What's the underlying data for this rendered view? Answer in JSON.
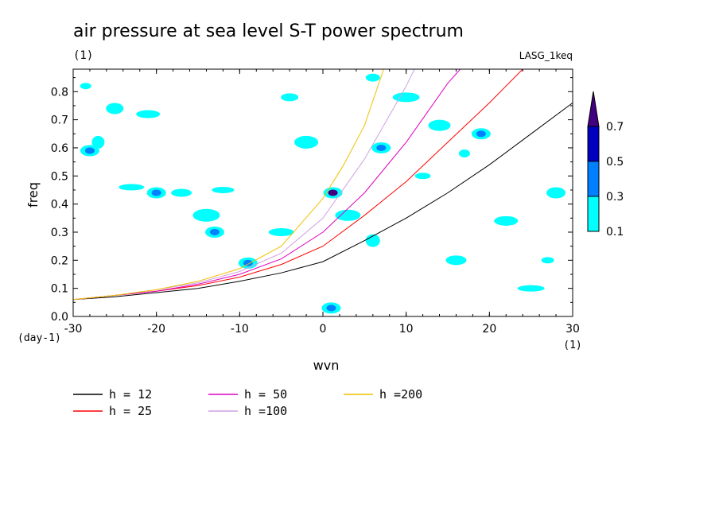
{
  "chart_data": {
    "type": "heatmap",
    "title": "air pressure at sea level S-T power spectrum",
    "subtitle": "(1)",
    "source_label": "LASG_1keq",
    "xlabel": "wvn",
    "xunit": "(1)",
    "ylabel": "freq",
    "yunit": "(day-1)",
    "xlim": [
      -30,
      30
    ],
    "ylim": [
      0,
      0.88
    ],
    "xticks": [
      "-30",
      "-20",
      "-10",
      "0",
      "10",
      "20",
      "30"
    ],
    "yticks": [
      "0.0",
      "0.1",
      "0.2",
      "0.3",
      "0.4",
      "0.5",
      "0.6",
      "0.7",
      "0.8"
    ],
    "colorbar": {
      "levels": [
        "0.1",
        "0.3",
        "0.5",
        "0.7"
      ],
      "colors": [
        "#00ffff",
        "#0080ff",
        "#0000c0",
        "#400080"
      ]
    },
    "contour_patches": [
      {
        "x": -28.5,
        "y": 0.82,
        "level": 0
      },
      {
        "x": -25,
        "y": 0.74,
        "level": 0
      },
      {
        "x": -21,
        "y": 0.72,
        "level": 0
      },
      {
        "x": -27,
        "y": 0.62,
        "level": 0
      },
      {
        "x": -28,
        "y": 0.59,
        "level": 1
      },
      {
        "x": -23,
        "y": 0.46,
        "level": 0
      },
      {
        "x": -20,
        "y": 0.44,
        "level": 1
      },
      {
        "x": -17,
        "y": 0.44,
        "level": 0
      },
      {
        "x": -14,
        "y": 0.36,
        "level": 0
      },
      {
        "x": -13,
        "y": 0.3,
        "level": 1
      },
      {
        "x": -12,
        "y": 0.45,
        "level": 0
      },
      {
        "x": -9,
        "y": 0.19,
        "level": 1
      },
      {
        "x": -4,
        "y": 0.78,
        "level": 0
      },
      {
        "x": -2,
        "y": 0.62,
        "level": 0
      },
      {
        "x": 1.2,
        "y": 0.44,
        "level": 3
      },
      {
        "x": 1,
        "y": 0.03,
        "level": 1
      },
      {
        "x": 3,
        "y": 0.36,
        "level": 0
      },
      {
        "x": 6,
        "y": 0.85,
        "level": 0
      },
      {
        "x": 7,
        "y": 0.6,
        "level": 1
      },
      {
        "x": 10,
        "y": 0.78,
        "level": 0
      },
      {
        "x": 12,
        "y": 0.5,
        "level": 0
      },
      {
        "x": 14,
        "y": 0.68,
        "level": 0
      },
      {
        "x": 17,
        "y": 0.58,
        "level": 0
      },
      {
        "x": 19,
        "y": 0.65,
        "level": 1
      },
      {
        "x": 22,
        "y": 0.34,
        "level": 0
      },
      {
        "x": 27,
        "y": 0.2,
        "level": 0
      },
      {
        "x": 28,
        "y": 0.44,
        "level": 0
      },
      {
        "x": -5,
        "y": 0.3,
        "level": 0
      },
      {
        "x": 6,
        "y": 0.27,
        "level": 0
      },
      {
        "x": 16,
        "y": 0.2,
        "level": 0
      },
      {
        "x": 25,
        "y": 0.1,
        "level": 0
      }
    ],
    "series": [
      {
        "name": "h = 12",
        "color": "#000000",
        "x": [
          -30,
          -25,
          -20,
          -15,
          -10,
          -5,
          0,
          5,
          10,
          15,
          20,
          25,
          30
        ],
        "y": [
          0.06,
          0.07,
          0.085,
          0.1,
          0.125,
          0.155,
          0.195,
          0.27,
          0.35,
          0.44,
          0.54,
          0.65,
          0.76
        ]
      },
      {
        "name": "h = 25",
        "color": "#ff0000",
        "x": [
          -30,
          -25,
          -20,
          -15,
          -10,
          -5,
          0,
          5,
          10,
          15,
          20,
          24
        ],
        "y": [
          0.06,
          0.075,
          0.09,
          0.11,
          0.14,
          0.185,
          0.25,
          0.36,
          0.48,
          0.62,
          0.76,
          0.88
        ]
      },
      {
        "name": "h = 50",
        "color": "#e000c0",
        "x": [
          -30,
          -25,
          -20,
          -15,
          -10,
          -5,
          0,
          5,
          10,
          15,
          16.5
        ],
        "y": [
          0.06,
          0.075,
          0.09,
          0.115,
          0.15,
          0.205,
          0.3,
          0.44,
          0.62,
          0.83,
          0.88
        ]
      },
      {
        "name": "h =100",
        "color": "#d0a0e0",
        "x": [
          -30,
          -25,
          -20,
          -15,
          -10,
          -5,
          0,
          5,
          10,
          11
        ],
        "y": [
          0.06,
          0.075,
          0.095,
          0.12,
          0.16,
          0.225,
          0.35,
          0.56,
          0.82,
          0.88
        ]
      },
      {
        "name": "h =200",
        "color": "#f0c000",
        "x": [
          -30,
          -25,
          -20,
          -15,
          -10,
          -5,
          0,
          2.5,
          5,
          7.3
        ],
        "y": [
          0.06,
          0.075,
          0.095,
          0.125,
          0.17,
          0.25,
          0.42,
          0.54,
          0.68,
          0.88
        ]
      }
    ]
  }
}
